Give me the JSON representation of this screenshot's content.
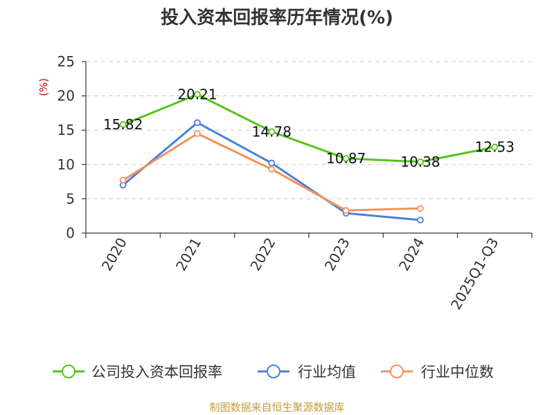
{
  "chart_data": {
    "type": "line",
    "title": "投入资本回报率历年情况(%)",
    "ylabel": "(%)",
    "xlabel": "",
    "categories": [
      "2020",
      "2021",
      "2022",
      "2023",
      "2024",
      "2025Q1-Q3"
    ],
    "ylim": [
      0,
      25
    ],
    "yticks": [
      0,
      5,
      10,
      15,
      20,
      25
    ],
    "grid": "horizontal-dashed",
    "legend_position": "bottom",
    "series": [
      {
        "name": "公司投入资本回报率",
        "color": "#52c41a",
        "values": [
          15.82,
          20.21,
          14.78,
          10.87,
          10.38,
          12.53
        ],
        "labels": [
          "15.82",
          "20.21",
          "14.78",
          "10.87",
          "10.38",
          "12.53"
        ]
      },
      {
        "name": "行业均值",
        "color": "#4a7fdc",
        "values": [
          7.0,
          16.1,
          10.2,
          2.9,
          1.9,
          null
        ]
      },
      {
        "name": "行业中位数",
        "color": "#f5915a",
        "values": [
          7.7,
          14.5,
          9.3,
          3.3,
          3.6,
          null
        ]
      }
    ],
    "source": "制图数据来自恒生聚源数据库"
  }
}
